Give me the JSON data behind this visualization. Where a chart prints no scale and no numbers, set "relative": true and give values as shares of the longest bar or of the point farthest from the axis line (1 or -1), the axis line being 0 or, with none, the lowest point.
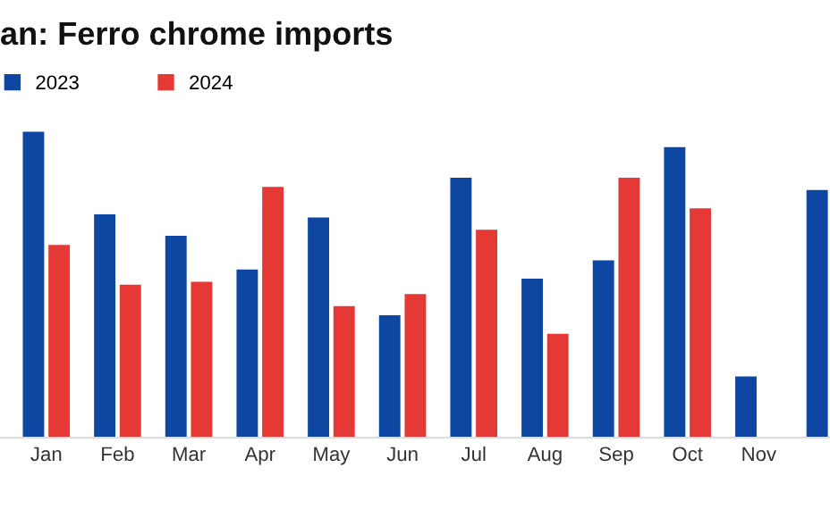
{
  "chart_data": {
    "type": "bar",
    "title": "an: Ferro chrome imports",
    "relative": true,
    "legend": "top left",
    "categories": [
      "Jan",
      "Feb",
      "Mar",
      "Apr",
      "May",
      "Jun",
      "Jul",
      "Aug",
      "Sep",
      "Oct",
      "Nov",
      null
    ],
    "series": [
      {
        "name": "2023",
        "color": "#0d47a1",
        "values": [
          1.0,
          0.73,
          0.66,
          0.55,
          0.72,
          0.4,
          0.85,
          0.52,
          0.58,
          0.95,
          0.2,
          0.81
        ]
      },
      {
        "name": "2024",
        "color": "#e53935",
        "values": [
          0.63,
          0.5,
          0.51,
          0.82,
          0.43,
          0.47,
          0.68,
          0.34,
          0.85,
          0.75,
          null,
          null
        ]
      }
    ]
  }
}
